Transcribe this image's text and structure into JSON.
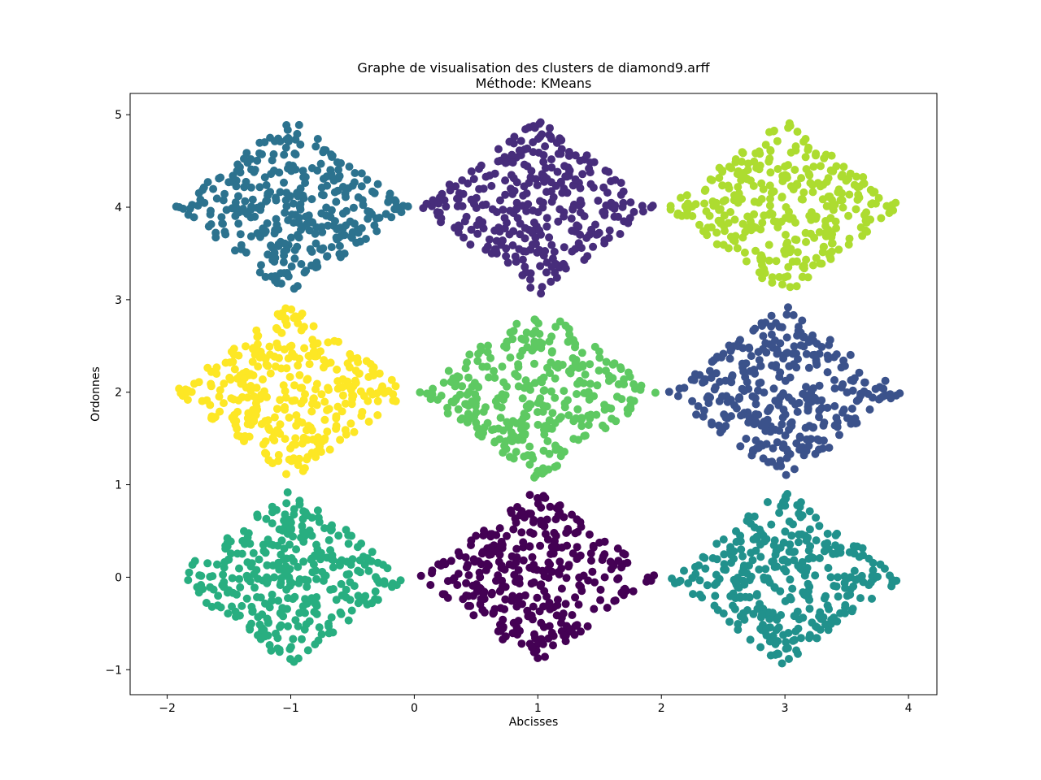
{
  "chart_data": {
    "type": "scatter",
    "title": "Graphe de visualisation des clusters de diamond9.arff",
    "subtitle": "Méthode: KMeans",
    "xlabel": "Abcisses",
    "ylabel": "Ordonnes",
    "xlim": [
      -2.3,
      4.23
    ],
    "ylim": [
      -1.27,
      5.23
    ],
    "xticks": [
      -2,
      -1,
      0,
      1,
      2,
      3,
      4
    ],
    "yticks": [
      -1,
      0,
      1,
      2,
      3,
      4,
      5
    ],
    "xtick_labels": [
      "−2",
      "−1",
      "0",
      "1",
      "2",
      "3",
      "4"
    ],
    "ytick_labels": [
      "−1",
      "0",
      "1",
      "2",
      "3",
      "4",
      "5"
    ],
    "grid": false,
    "legend": "none",
    "points_per_cluster": 330,
    "clusters": [
      {
        "center": [
          -1,
          4
        ],
        "color": "#2c728e"
      },
      {
        "center": [
          1,
          4
        ],
        "color": "#472d7b"
      },
      {
        "center": [
          3,
          4
        ],
        "color": "#addc30"
      },
      {
        "center": [
          -1,
          2
        ],
        "color": "#fde725"
      },
      {
        "center": [
          1,
          2
        ],
        "color": "#5ec962"
      },
      {
        "center": [
          3,
          2
        ],
        "color": "#3b528b"
      },
      {
        "center": [
          -1,
          0
        ],
        "color": "#28ae80"
      },
      {
        "center": [
          1,
          0
        ],
        "color": "#440154"
      },
      {
        "center": [
          3,
          0
        ],
        "color": "#21918c"
      }
    ]
  }
}
